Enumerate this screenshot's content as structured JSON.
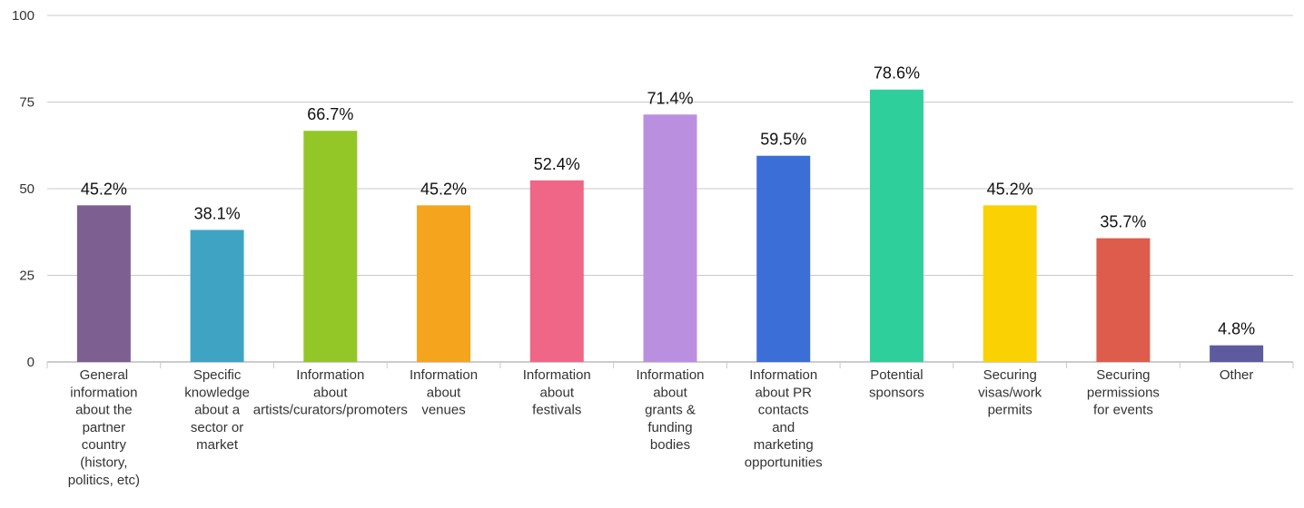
{
  "chart_data": {
    "type": "bar",
    "title": "",
    "xlabel": "",
    "ylabel": "",
    "ylim": [
      0,
      100
    ],
    "yticks": [
      0,
      25,
      50,
      75,
      100
    ],
    "grid": true,
    "legend": "none",
    "categories": [
      [
        "General",
        "information",
        "about the",
        "partner",
        "country",
        "(history,",
        "politics, etc)"
      ],
      [
        "Specific",
        "knowledge",
        "about a",
        "sector or",
        "market"
      ],
      [
        "Information",
        "about",
        "artists/curators/promoters"
      ],
      [
        "Information",
        "about",
        "venues"
      ],
      [
        "Information",
        "about",
        "festivals"
      ],
      [
        "Information",
        "about",
        "grants &",
        "funding",
        "bodies"
      ],
      [
        "Information",
        "about PR",
        "contacts",
        "and",
        "marketing",
        "opportunities"
      ],
      [
        "Potential",
        "sponsors"
      ],
      [
        "Securing",
        "visas/work",
        "permits"
      ],
      [
        "Securing",
        "permissions",
        "for events"
      ],
      [
        "Other"
      ]
    ],
    "values": [
      45.2,
      38.1,
      66.7,
      45.2,
      52.4,
      71.4,
      59.5,
      78.6,
      45.2,
      35.7,
      4.8
    ],
    "data_labels": [
      "45.2%",
      "38.1%",
      "66.7%",
      "45.2%",
      "52.4%",
      "71.4%",
      "59.5%",
      "78.6%",
      "45.2%",
      "35.7%",
      "4.8%"
    ],
    "colors": [
      "#7d5f92",
      "#3fa4c4",
      "#93c728",
      "#f5a41d",
      "#ef6686",
      "#bb8fe0",
      "#3b6ed6",
      "#2fcf9c",
      "#fad204",
      "#dd5c4b",
      "#5d5b9e"
    ],
    "grid_color": "#c8c8c8",
    "axis_color": "#999999"
  }
}
